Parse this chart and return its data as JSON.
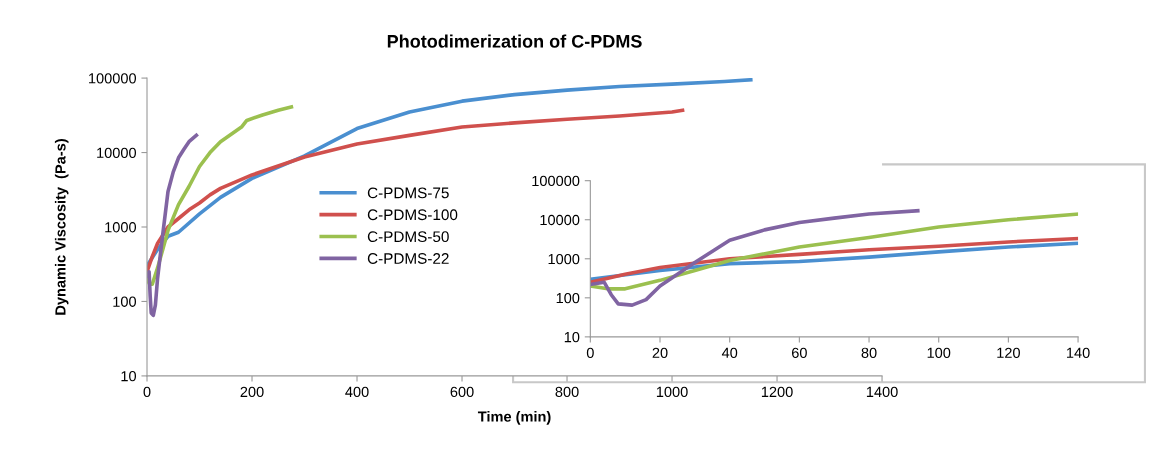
{
  "chart_data": [
    {
      "type": "line",
      "title": "Photodimerization of C-PDMS",
      "xlabel": "Time (min)",
      "ylabel": "Dynamic Viscosity  (Pa-s)",
      "log": "y",
      "grid": false,
      "legend": "center",
      "marker": "none",
      "line_style": "solid",
      "xlim": [
        0,
        1400
      ],
      "xticks": [
        0,
        200,
        400,
        600,
        800,
        1000,
        1200,
        1400
      ],
      "ylim": [
        10,
        100000
      ],
      "yticks": [
        10,
        100,
        1000,
        10000,
        100000
      ],
      "series": [
        {
          "name": "C-PDMS-75",
          "color": "#4a8fd0",
          "x": [
            0,
            20,
            40,
            60,
            100,
            140,
            200,
            300,
            400,
            500,
            600,
            700,
            800,
            900,
            1000,
            1100,
            1150
          ],
          "values": [
            300,
            500,
            750,
            850,
            1500,
            2500,
            4500,
            9000,
            21000,
            35000,
            49000,
            60000,
            69000,
            77000,
            83000,
            90000,
            95000
          ]
        },
        {
          "name": "C-PDMS-100",
          "color": "#d0504d",
          "x": [
            0,
            10,
            20,
            40,
            60,
            80,
            100,
            120,
            140,
            200,
            300,
            400,
            500,
            600,
            700,
            800,
            900,
            1000,
            1020
          ],
          "values": [
            250,
            400,
            600,
            1000,
            1300,
            1700,
            2100,
            2700,
            3300,
            5000,
            8700,
            13000,
            17000,
            22000,
            25000,
            28000,
            31000,
            35000,
            37000
          ]
        },
        {
          "name": "C-PDMS-50",
          "color": "#9bc04f",
          "x": [
            0,
            5,
            10,
            20,
            30,
            40,
            60,
            80,
            100,
            120,
            140,
            180,
            190,
            220,
            250,
            275
          ],
          "values": [
            200,
            170,
            170,
            280,
            500,
            900,
            2000,
            3500,
            6500,
            10000,
            14000,
            22000,
            27000,
            32000,
            37000,
            41000
          ]
        },
        {
          "name": "C-PDMS-22",
          "color": "#8064a2",
          "x": [
            0,
            4,
            6,
            8,
            12,
            16,
            20,
            30,
            40,
            50,
            60,
            70,
            80,
            94
          ],
          "values": [
            220,
            250,
            120,
            70,
            65,
            90,
            200,
            800,
            3000,
            5500,
            8500,
            11000,
            14000,
            17000
          ]
        }
      ]
    },
    {
      "type": "line",
      "log": "y",
      "grid": false,
      "marker": "none",
      "line_style": "solid",
      "xlim": [
        0,
        140
      ],
      "xticks": [
        0,
        20,
        40,
        60,
        80,
        100,
        120,
        140
      ],
      "ylim": [
        10,
        100000
      ],
      "yticks": [
        10,
        100,
        1000,
        10000,
        100000
      ],
      "series": [
        {
          "color": "#4a8fd0",
          "x": [
            0,
            20,
            40,
            60,
            80,
            100,
            120,
            140
          ],
          "values": [
            300,
            500,
            750,
            850,
            1100,
            1500,
            2000,
            2500
          ]
        },
        {
          "color": "#d0504d",
          "x": [
            0,
            10,
            20,
            40,
            60,
            80,
            100,
            120,
            140
          ],
          "values": [
            250,
            400,
            600,
            1000,
            1300,
            1700,
            2100,
            2700,
            3300
          ]
        },
        {
          "color": "#9bc04f",
          "x": [
            0,
            5,
            10,
            20,
            30,
            40,
            60,
            80,
            100,
            120,
            140
          ],
          "values": [
            200,
            170,
            170,
            280,
            500,
            900,
            2000,
            3500,
            6500,
            10000,
            14000
          ]
        },
        {
          "color": "#8064a2",
          "x": [
            0,
            4,
            6,
            8,
            12,
            16,
            20,
            30,
            40,
            50,
            60,
            70,
            80,
            94
          ],
          "values": [
            220,
            250,
            120,
            70,
            65,
            90,
            200,
            800,
            3000,
            5500,
            8500,
            11000,
            14000,
            17000
          ]
        }
      ]
    }
  ]
}
